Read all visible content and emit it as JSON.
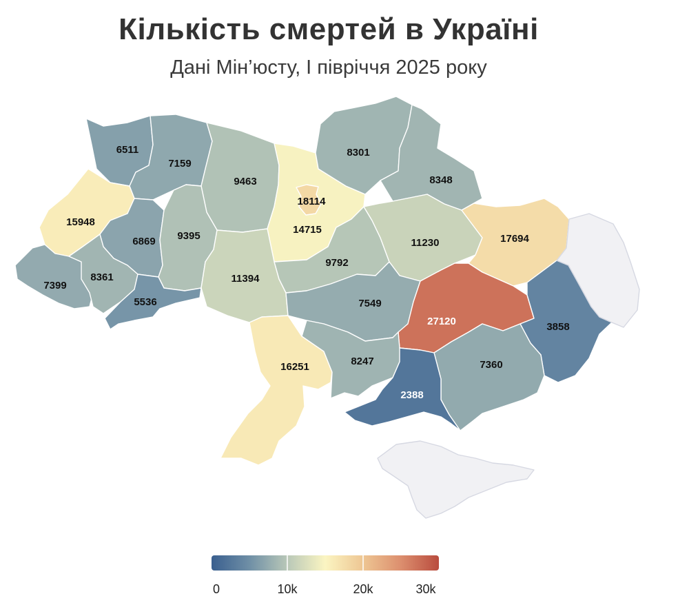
{
  "title": "Кількість смертей в Україні",
  "subtitle": "Дані Мін’юсту, І півріччя 2025 року",
  "colors": {
    "scale": [
      "#3a5f8f",
      "#6f8fa6",
      "#b9c8b8",
      "#fbf5c2",
      "#eec693",
      "#dc8e6e",
      "#b94c3e"
    ],
    "no_data": "#f1f1f4"
  },
  "legend": {
    "min": 0,
    "max": 30000,
    "ticks": [
      "0",
      "10k",
      "20k",
      "30k"
    ],
    "tick_values": [
      0,
      10000,
      20000,
      30000
    ]
  },
  "regions": [
    {
      "id": "volyn",
      "value": 6511
    },
    {
      "id": "rivne",
      "value": 7159
    },
    {
      "id": "zhytomyr",
      "value": 9463
    },
    {
      "id": "kyiv-oblast",
      "value": 14715
    },
    {
      "id": "kyiv-city",
      "value": 18114
    },
    {
      "id": "chernihiv",
      "value": 8301
    },
    {
      "id": "sumy",
      "value": 8348
    },
    {
      "id": "lviv",
      "value": 15948
    },
    {
      "id": "ternopil",
      "value": 6869
    },
    {
      "id": "khmelnytskyi",
      "value": 9395
    },
    {
      "id": "vinnytsia",
      "value": 11394
    },
    {
      "id": "cherkasy",
      "value": 9792
    },
    {
      "id": "poltava",
      "value": 11230
    },
    {
      "id": "kharkiv",
      "value": 17694
    },
    {
      "id": "zakarpattia",
      "value": 7399
    },
    {
      "id": "ivano-frankivsk",
      "value": 8361
    },
    {
      "id": "chernivtsi",
      "value": 5536
    },
    {
      "id": "kirovohrad",
      "value": 7549
    },
    {
      "id": "dnipropetrovsk",
      "value": 27120
    },
    {
      "id": "donetsk",
      "value": 3858
    },
    {
      "id": "odesa",
      "value": 16251
    },
    {
      "id": "mykolaiv",
      "value": 8247
    },
    {
      "id": "zaporizhzhia",
      "value": 7360
    },
    {
      "id": "kherson",
      "value": 2388
    },
    {
      "id": "luhansk",
      "value": null
    },
    {
      "id": "crimea",
      "value": null
    }
  ]
}
